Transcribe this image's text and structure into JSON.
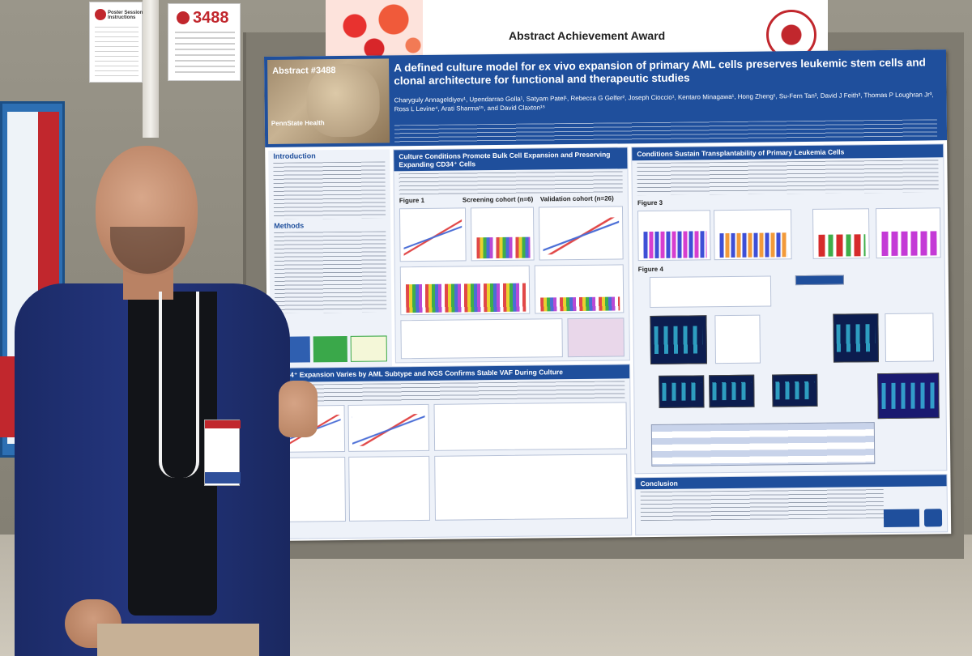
{
  "booth": {
    "poster_number": "3488",
    "instructions_title": "Poster Session Instructions"
  },
  "award_banner": {
    "title": "Abstract Achievement Award",
    "colors": {
      "accent": "#c1272d"
    }
  },
  "poster": {
    "abstract_label": "Abstract #3488",
    "institution_logo_text": "PennState Health",
    "title": "A defined culture model for ex vivo expansion of primary AML cells preserves leukemic stem cells and clonal architecture for functional and therapeutic studies",
    "authors": "Charyguly Annageldiyev¹, Upendarrao Golla¹, Satyam Patel¹, Rebecca G Gelfer², Joseph Cioccio¹, Kentaro Minagawa¹, Hong Zheng¹, Su-Fern Tan³, David J Feith³, Thomas P Loughran Jr³, Ross L Levine⁴, Arati Sharma¹⁵, and David Claxton¹⁵",
    "sections": {
      "introduction": "Introduction",
      "methods": "Methods",
      "culture_conditions": "Culture Conditions Promote Bulk Cell Expansion and Preserving Expanding CD34⁺ Cells",
      "figure1": "Figure 1",
      "screening_cohort": "Screening cohort (n=6)",
      "validation_cohort": "Validation cohort (n=26)",
      "cd34_expansion": "CD34⁺ Expansion Varies by AML Subtype and NGS Confirms Stable VAF During Culture",
      "transplantability": "Conditions Sustain Transplantability of Primary Leukemia Cells",
      "figure3": "Figure 3",
      "figure4": "Figure 4",
      "conclusion": "Conclusion"
    },
    "colors": {
      "header": "#1f4f9c"
    }
  }
}
